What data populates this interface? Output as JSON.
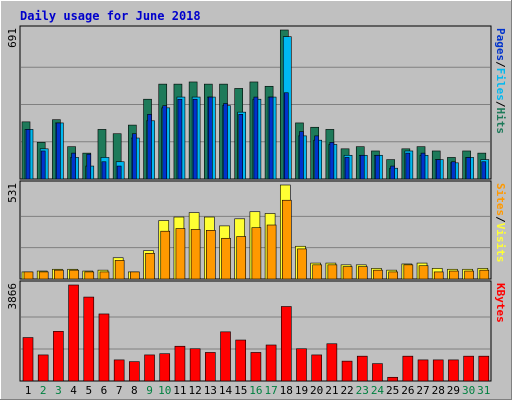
{
  "chart_data": {
    "type": "bar",
    "title": "Daily usage for June 2018",
    "categories": [
      "1",
      "2",
      "3",
      "4",
      "5",
      "6",
      "7",
      "8",
      "9",
      "10",
      "11",
      "12",
      "13",
      "14",
      "15",
      "16",
      "17",
      "18",
      "19",
      "20",
      "21",
      "22",
      "23",
      "24",
      "25",
      "26",
      "27",
      "28",
      "29",
      "30",
      "31"
    ],
    "weekend_days": [
      "2",
      "3",
      "9",
      "10",
      "16",
      "17",
      "23",
      "24",
      "30",
      "31"
    ],
    "panels": [
      {
        "id": "hits",
        "ymax_label": "691",
        "ymax": 691,
        "legend": [
          "Pages",
          "/",
          "Files",
          "/",
          "Hits"
        ],
        "series": [
          {
            "name": "Hits",
            "color": "#1e7a5a",
            "values": [
              265,
              170,
              275,
              150,
              120,
              230,
              210,
              250,
              370,
              440,
              440,
              450,
              440,
              440,
              420,
              450,
              430,
              691,
              260,
              240,
              230,
              140,
              150,
              130,
              90,
              140,
              150,
              130,
              100,
              130,
              120
            ]
          },
          {
            "name": "Files",
            "color": "#00b8f0",
            "values": [
              230,
              140,
              260,
              100,
              60,
              100,
              80,
              190,
              270,
              330,
              380,
              380,
              380,
              340,
              310,
              370,
              380,
              660,
              200,
              180,
              160,
              110,
              110,
              110,
              50,
              130,
              110,
              90,
              75,
              100,
              90
            ]
          },
          {
            "name": "Pages",
            "color": "#0033cc",
            "values": [
              230,
              130,
              260,
              120,
              115,
              80,
              60,
              210,
              300,
              340,
              370,
              370,
              380,
              350,
              300,
              380,
              380,
              400,
              220,
              200,
              170,
              100,
              110,
              110,
              60,
              120,
              120,
              90,
              80,
              100,
              80
            ]
          }
        ]
      },
      {
        "id": "sites",
        "ymax_label": "531",
        "ymax": 531,
        "legend": [
          "Sites",
          "/",
          "Visits"
        ],
        "series": [
          {
            "name": "Visits",
            "color": "#ffff33",
            "values": [
              40,
              45,
              55,
              55,
              45,
              50,
              120,
              40,
              160,
              330,
              350,
              375,
              350,
              300,
              340,
              380,
              370,
              531,
              185,
              90,
              90,
              80,
              80,
              60,
              50,
              85,
              90,
              60,
              55,
              55,
              60
            ]
          },
          {
            "name": "Sites",
            "color": "#ff9900",
            "values": [
              40,
              40,
              50,
              50,
              40,
              40,
              105,
              40,
              145,
              270,
              285,
              280,
              275,
              230,
              240,
              290,
              305,
              445,
              170,
              80,
              80,
              70,
              70,
              50,
              40,
              80,
              75,
              40,
              45,
              45,
              50
            ]
          }
        ]
      },
      {
        "id": "kbytes",
        "ymax_label": "3866",
        "ymax": 3866,
        "legend": [
          "KBytes"
        ],
        "series": [
          {
            "name": "KBytes",
            "color": "#ff0000",
            "values": [
              1750,
              1050,
              2000,
              3866,
              3380,
              2700,
              850,
              780,
              1050,
              1100,
              1400,
              1300,
              1150,
              1980,
              1650,
              1150,
              1450,
              3000,
              1300,
              1050,
              1500,
              800,
              1000,
              700,
              150,
              1000,
              850,
              850,
              850,
              1000,
              1000
            ]
          }
        ]
      }
    ]
  }
}
